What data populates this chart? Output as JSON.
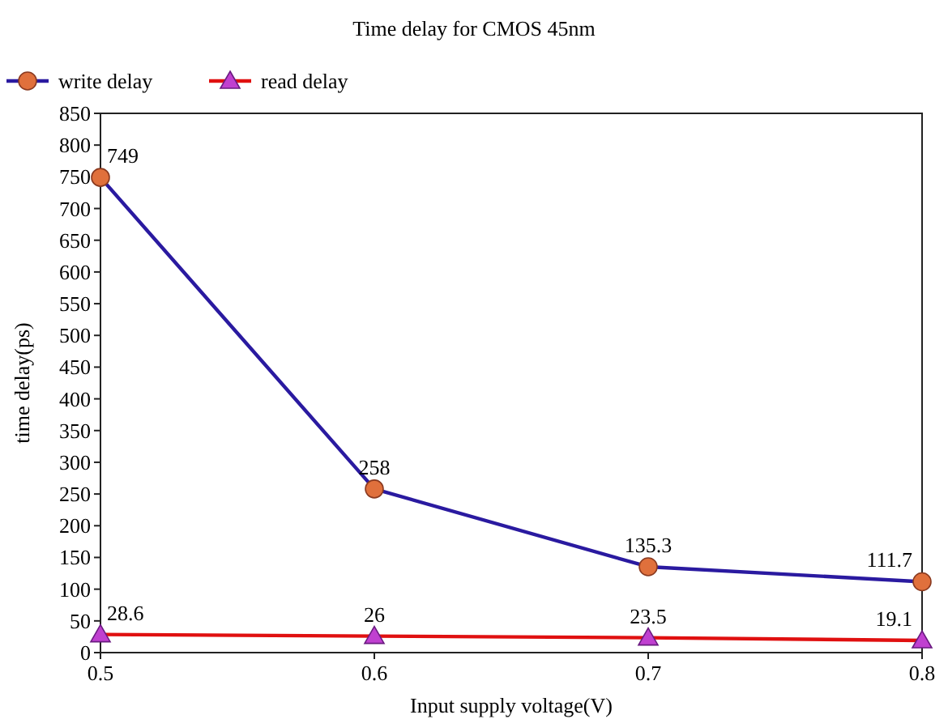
{
  "chart_data": {
    "type": "line",
    "title": "Time delay for CMOS 45nm",
    "xlabel": "Input supply voltage(V)",
    "ylabel": "time delay(ps)",
    "x": [
      0.5,
      0.6,
      0.7,
      0.8
    ],
    "series": [
      {
        "name": "write delay",
        "color": "#2a1aa0",
        "marker": "circle",
        "values": [
          749,
          258,
          135.3,
          111.7
        ]
      },
      {
        "name": "read delay",
        "color": "#e01010",
        "marker": "triangle",
        "values": [
          28.6,
          26,
          23.5,
          19.1
        ]
      }
    ],
    "xlim": [
      0.5,
      0.8
    ],
    "xticks": [
      0.5,
      0.6,
      0.7,
      0.8
    ],
    "ylim": [
      0,
      850
    ],
    "yticks": [
      0,
      50,
      100,
      150,
      200,
      250,
      300,
      350,
      400,
      450,
      500,
      550,
      600,
      650,
      700,
      750,
      800,
      850
    ],
    "data_labels": true,
    "legend": "top left",
    "grid": false
  }
}
